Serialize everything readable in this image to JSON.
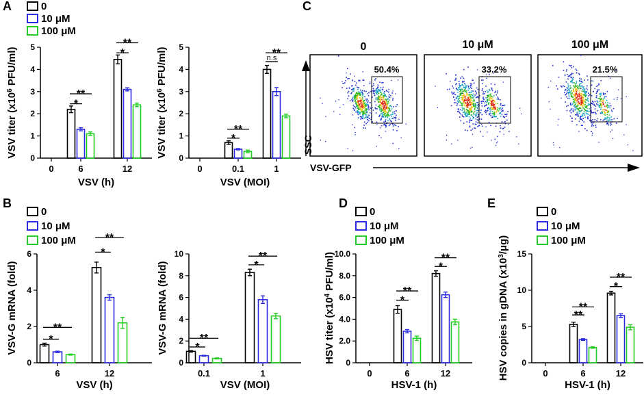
{
  "colors": {
    "black": "#000000",
    "blue": "#2a2ae0",
    "green": "#22cc22"
  },
  "legend": {
    "labels": [
      "0",
      "10 μM",
      "100 μM"
    ]
  },
  "panel_letters": [
    "A",
    "B",
    "C",
    "D",
    "E"
  ],
  "panel_c": {
    "axis_y": "SSC",
    "axis_x": "VSV-GFP",
    "plots": [
      {
        "title": "0",
        "gate_percent": "50.4%"
      },
      {
        "title": "10 μM",
        "gate_percent": "33.2%"
      },
      {
        "title": "100 μM",
        "gate_percent": "21.5%"
      }
    ]
  },
  "chart_data": [
    {
      "id": "A1",
      "type": "bar",
      "xlabel": "VSV (h)",
      "ylabel": "VSV titer (x10^6 PFU/ml)",
      "ylim": [
        0,
        5
      ],
      "yticks": [
        0,
        1,
        2,
        3,
        4,
        5
      ],
      "ytick_labels": [
        "0",
        "1",
        "2",
        "3",
        "4",
        "5"
      ],
      "categories": [
        "0",
        "6",
        "12"
      ],
      "series": [
        {
          "name": "0",
          "values": [
            0,
            2.2,
            4.45
          ],
          "errors": [
            0,
            0.15,
            0.2
          ]
        },
        {
          "name": "10 μM",
          "values": [
            0,
            1.3,
            3.1
          ],
          "errors": [
            0,
            0.07,
            0.07
          ]
        },
        {
          "name": "100 μM",
          "values": [
            0,
            1.1,
            2.4
          ],
          "errors": [
            0,
            0.08,
            0.08
          ]
        }
      ],
      "annotations": [
        {
          "group": 1,
          "from": 0,
          "to": 1,
          "y": 2.45,
          "text": "*"
        },
        {
          "group": 1,
          "from": 0,
          "to": 2,
          "y": 2.9,
          "text": "**"
        },
        {
          "group": 2,
          "from": 0,
          "to": 1,
          "y": 4.75,
          "text": "*"
        },
        {
          "group": 2,
          "from": 0,
          "to": 2,
          "y": 5.2,
          "text": "**"
        }
      ]
    },
    {
      "id": "A2",
      "type": "bar",
      "xlabel": "VSV (MOI)",
      "ylabel": "VSV titer (x10^6 PFU/ml)",
      "ylim": [
        0,
        5
      ],
      "yticks": [
        0,
        1,
        2,
        3,
        4,
        5
      ],
      "ytick_labels": [
        "0",
        "1",
        "2",
        "3",
        "4",
        "5"
      ],
      "categories": [
        "0",
        "0.1",
        "1"
      ],
      "series": [
        {
          "name": "0",
          "values": [
            0,
            0.7,
            4.0
          ],
          "errors": [
            0,
            0.08,
            0.18
          ]
        },
        {
          "name": "10 μM",
          "values": [
            0,
            0.4,
            3.0
          ],
          "errors": [
            0,
            0.03,
            0.18
          ]
        },
        {
          "name": "100 μM",
          "values": [
            0,
            0.3,
            1.9
          ],
          "errors": [
            0,
            0.06,
            0.08
          ]
        }
      ],
      "annotations": [
        {
          "group": 1,
          "from": 0,
          "to": 1,
          "y": 0.9,
          "text": "*"
        },
        {
          "group": 1,
          "from": 0,
          "to": 2,
          "y": 1.3,
          "text": "**"
        },
        {
          "group": 2,
          "from": 0,
          "to": 1,
          "y": 4.35,
          "text": "n.s"
        },
        {
          "group": 2,
          "from": 0,
          "to": 2,
          "y": 4.75,
          "text": "**"
        }
      ]
    },
    {
      "id": "B1",
      "type": "bar",
      "xlabel": "VSV (h)",
      "ylabel": "VSV-G mRNA (fold)",
      "ylim": [
        0,
        6
      ],
      "yticks": [
        0,
        2,
        4,
        6
      ],
      "ytick_labels": [
        "0",
        "2",
        "4",
        "6"
      ],
      "categories": [
        "6",
        "12"
      ],
      "series": [
        {
          "name": "0",
          "values": [
            1.0,
            5.25
          ],
          "errors": [
            0.08,
            0.3
          ]
        },
        {
          "name": "10 μM",
          "values": [
            0.6,
            3.6
          ],
          "errors": [
            0.04,
            0.15
          ]
        },
        {
          "name": "100 μM",
          "values": [
            0.45,
            2.2
          ],
          "errors": [
            0.03,
            0.3
          ]
        }
      ],
      "annotations": [
        {
          "group": 0,
          "from": 0,
          "to": 1,
          "y": 1.3,
          "text": "*"
        },
        {
          "group": 0,
          "from": 0,
          "to": 2,
          "y": 1.95,
          "text": "**"
        },
        {
          "group": 1,
          "from": 0,
          "to": 1,
          "y": 6.1,
          "text": "*"
        },
        {
          "group": 1,
          "from": 0,
          "to": 2,
          "y": 6.9,
          "text": "**"
        }
      ]
    },
    {
      "id": "B2",
      "type": "bar",
      "xlabel": "VSV (MOI)",
      "ylabel": "VSV-G mRNA (fold)",
      "ylim": [
        0,
        10
      ],
      "yticks": [
        0,
        2,
        4,
        6,
        8,
        10
      ],
      "ytick_labels": [
        "0",
        "2",
        "4",
        "6",
        "8",
        "10"
      ],
      "categories": [
        "0.1",
        "1"
      ],
      "series": [
        {
          "name": "0",
          "values": [
            1.05,
            8.3
          ],
          "errors": [
            0.07,
            0.3
          ]
        },
        {
          "name": "10 μM",
          "values": [
            0.65,
            5.8
          ],
          "errors": [
            0.04,
            0.35
          ]
        },
        {
          "name": "100 μM",
          "values": [
            0.4,
            4.3
          ],
          "errors": [
            0.05,
            0.25
          ]
        }
      ],
      "annotations": [
        {
          "group": 0,
          "from": 0,
          "to": 1,
          "y": 1.45,
          "text": "*"
        },
        {
          "group": 0,
          "from": 0,
          "to": 2,
          "y": 2.25,
          "text": "**"
        },
        {
          "group": 1,
          "from": 0,
          "to": 1,
          "y": 9.0,
          "text": "*"
        },
        {
          "group": 1,
          "from": 0,
          "to": 2,
          "y": 9.8,
          "text": "**"
        }
      ]
    },
    {
      "id": "D",
      "type": "bar",
      "xlabel": "HSV-1 (h)",
      "ylabel": "HSV titer (x10^4 PFU/ml)",
      "ylim": [
        0,
        10
      ],
      "yticks": [
        0,
        2,
        4,
        6,
        8,
        10
      ],
      "ytick_labels": [
        "0",
        "2.0",
        "4.0",
        "6.0",
        "8.0",
        "10.0"
      ],
      "categories": [
        "0",
        "6",
        "12"
      ],
      "series": [
        {
          "name": "0",
          "values": [
            0,
            4.9,
            8.2
          ],
          "errors": [
            0,
            0.35,
            0.25
          ]
        },
        {
          "name": "10 μM",
          "values": [
            0,
            2.9,
            6.25
          ],
          "errors": [
            0,
            0.15,
            0.25
          ]
        },
        {
          "name": "100 μM",
          "values": [
            0,
            2.25,
            3.75
          ],
          "errors": [
            0,
            0.2,
            0.25
          ]
        }
      ],
      "annotations": [
        {
          "group": 1,
          "from": 0,
          "to": 1,
          "y": 5.75,
          "text": "*"
        },
        {
          "group": 1,
          "from": 0,
          "to": 2,
          "y": 6.6,
          "text": "**"
        },
        {
          "group": 2,
          "from": 0,
          "to": 1,
          "y": 8.85,
          "text": "*"
        },
        {
          "group": 2,
          "from": 0,
          "to": 2,
          "y": 9.65,
          "text": "**"
        }
      ]
    },
    {
      "id": "E",
      "type": "bar",
      "xlabel": "HSV-1 (h)",
      "ylabel": "HSV copies in gDNA (x10^3/μg)",
      "ylim": [
        0,
        15
      ],
      "yticks": [
        0,
        5,
        10,
        15
      ],
      "ytick_labels": [
        "0",
        "5",
        "10",
        "15"
      ],
      "categories": [
        "0",
        "6",
        "12"
      ],
      "series": [
        {
          "name": "0",
          "values": [
            0,
            5.3,
            9.6
          ],
          "errors": [
            0,
            0.3,
            0.25
          ]
        },
        {
          "name": "10 μM",
          "values": [
            0,
            3.2,
            6.5
          ],
          "errors": [
            0,
            0.12,
            0.25
          ]
        },
        {
          "name": "100 μM",
          "values": [
            0,
            2.1,
            4.9
          ],
          "errors": [
            0,
            0.1,
            0.35
          ]
        }
      ],
      "annotations": [
        {
          "group": 1,
          "from": 0,
          "to": 1,
          "y": 6.6,
          "text": "**"
        },
        {
          "group": 1,
          "from": 0,
          "to": 2,
          "y": 7.7,
          "text": "**"
        },
        {
          "group": 2,
          "from": 0,
          "to": 1,
          "y": 10.5,
          "text": "*"
        },
        {
          "group": 2,
          "from": 0,
          "to": 2,
          "y": 11.8,
          "text": "**"
        }
      ]
    }
  ]
}
